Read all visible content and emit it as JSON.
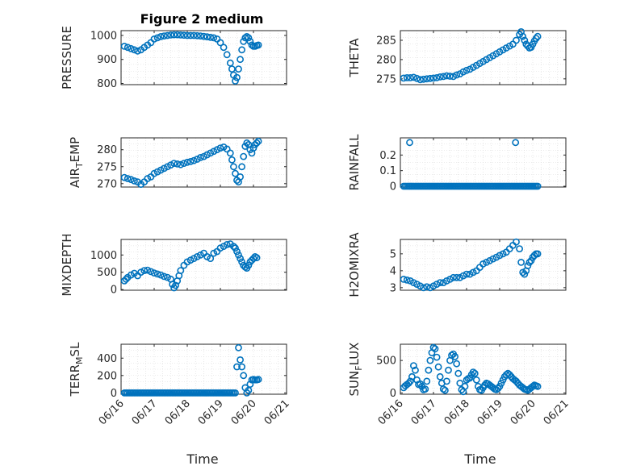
{
  "figure": {
    "title": "Figure 2 medium",
    "marker_color": "#0072BD",
    "axis_color": "#262626",
    "grid_color": "#d9d9d9"
  },
  "chart_data": [
    {
      "type": "scatter",
      "marker": "open-circle",
      "grid": true,
      "ylabel": "PRESSURE",
      "yticks": [
        800,
        900,
        1000
      ],
      "ylim": [
        795,
        1020
      ],
      "xlim": [
        0,
        5
      ],
      "xticks": [
        0,
        1,
        2,
        3,
        4,
        5
      ],
      "xticklabels": [
        "06/16",
        "06/17",
        "06/18",
        "06/19",
        "06/20",
        "06/21"
      ],
      "xticklabels_visible": false,
      "title": "Figure 2 medium",
      "x": [
        0.1,
        0.2,
        0.3,
        0.4,
        0.5,
        0.6,
        0.7,
        0.8,
        0.9,
        1.0,
        1.1,
        1.2,
        1.3,
        1.4,
        1.5,
        1.6,
        1.7,
        1.8,
        1.9,
        2.0,
        2.1,
        2.2,
        2.3,
        2.4,
        2.5,
        2.6,
        2.7,
        2.8,
        2.9,
        3.0,
        3.1,
        3.2,
        3.3,
        3.35,
        3.4,
        3.45,
        3.5,
        3.55,
        3.6,
        3.65,
        3.7,
        3.75,
        3.8,
        3.85,
        3.9,
        3.95,
        4.0,
        4.05,
        4.1,
        4.15
      ],
      "y": [
        955,
        950,
        945,
        940,
        935,
        940,
        950,
        960,
        970,
        985,
        990,
        995,
        998,
        1000,
        1002,
        1003,
        1003,
        1002,
        1001,
        1000,
        1000,
        1000,
        999,
        998,
        996,
        994,
        992,
        990,
        985,
        970,
        950,
        920,
        885,
        860,
        835,
        810,
        825,
        860,
        900,
        940,
        975,
        990,
        995,
        990,
        975,
        960,
        955,
        955,
        958,
        960
      ]
    },
    {
      "type": "scatter",
      "marker": "open-circle",
      "grid": true,
      "ylabel": "THETA",
      "yticks": [
        275,
        280,
        285
      ],
      "ylim": [
        273.5,
        287.5
      ],
      "xlim": [
        0,
        5
      ],
      "xticks": [
        0,
        1,
        2,
        3,
        4,
        5
      ],
      "xticklabels": [
        "06/16",
        "06/17",
        "06/18",
        "06/19",
        "06/20",
        "06/21"
      ],
      "xticklabels_visible": false,
      "x": [
        0.1,
        0.2,
        0.3,
        0.4,
        0.5,
        0.6,
        0.7,
        0.8,
        0.9,
        1.0,
        1.1,
        1.2,
        1.3,
        1.4,
        1.5,
        1.6,
        1.7,
        1.8,
        1.9,
        2.0,
        2.1,
        2.2,
        2.3,
        2.4,
        2.5,
        2.6,
        2.7,
        2.8,
        2.9,
        3.0,
        3.1,
        3.2,
        3.3,
        3.4,
        3.5,
        3.6,
        3.65,
        3.7,
        3.75,
        3.8,
        3.85,
        3.9,
        3.95,
        4.0,
        4.05,
        4.1,
        4.15
      ],
      "y": [
        275.2,
        275.3,
        275.3,
        275.4,
        275.1,
        274.8,
        274.9,
        275.0,
        275.1,
        275.2,
        275.3,
        275.5,
        275.6,
        275.8,
        275.7,
        275.6,
        276.0,
        276.3,
        276.8,
        277.2,
        277.5,
        278.0,
        278.5,
        279.0,
        279.5,
        280.0,
        280.5,
        281.0,
        281.5,
        282.0,
        282.5,
        283.0,
        283.5,
        284.0,
        285.0,
        286.5,
        287.2,
        286.0,
        285.0,
        284.0,
        283.5,
        283.0,
        283.2,
        284.0,
        284.8,
        285.5,
        286.0
      ]
    },
    {
      "type": "scatter",
      "marker": "open-circle",
      "grid": true,
      "ylabel": "AIR_TEMP",
      "yticks": [
        270,
        275,
        280
      ],
      "ylim": [
        269.0,
        283.5
      ],
      "xlim": [
        0,
        5
      ],
      "xticks": [
        0,
        1,
        2,
        3,
        4,
        5
      ],
      "xticklabels": [
        "06/16",
        "06/17",
        "06/18",
        "06/19",
        "06/20",
        "06/21"
      ],
      "xticklabels_visible": false,
      "x": [
        0.1,
        0.2,
        0.3,
        0.4,
        0.5,
        0.6,
        0.7,
        0.8,
        0.9,
        1.0,
        1.1,
        1.2,
        1.3,
        1.4,
        1.5,
        1.6,
        1.7,
        1.8,
        1.9,
        2.0,
        2.1,
        2.2,
        2.3,
        2.4,
        2.5,
        2.6,
        2.7,
        2.8,
        2.9,
        3.0,
        3.1,
        3.2,
        3.3,
        3.35,
        3.4,
        3.45,
        3.5,
        3.55,
        3.6,
        3.65,
        3.7,
        3.75,
        3.8,
        3.85,
        3.9,
        3.95,
        4.0,
        4.05,
        4.1,
        4.15
      ],
      "y": [
        271.8,
        271.5,
        271.2,
        270.8,
        270.5,
        269.8,
        270.5,
        271.5,
        272.0,
        273.0,
        273.5,
        274.0,
        274.5,
        275.0,
        275.5,
        276.0,
        275.8,
        275.6,
        276.0,
        276.3,
        276.5,
        276.8,
        277.2,
        277.7,
        278.0,
        278.5,
        279.0,
        279.5,
        280.0,
        280.5,
        280.8,
        280.2,
        279.0,
        277.0,
        275.0,
        273.0,
        271.0,
        270.5,
        272.0,
        275.0,
        278.0,
        281.0,
        282.0,
        281.5,
        280.0,
        279.0,
        280.5,
        281.5,
        282.0,
        282.5
      ]
    },
    {
      "type": "scatter",
      "marker": "open-circle",
      "grid": true,
      "ylabel": "RAINFALL",
      "yticks": [
        0,
        0.1,
        0.2
      ],
      "yticklabels": [
        "0",
        "0.1",
        "0.2"
      ],
      "ylim": [
        -0.005,
        0.31
      ],
      "xlim": [
        0,
        5
      ],
      "xticks": [
        0,
        1,
        2,
        3,
        4,
        5
      ],
      "xticklabels": [
        "06/16",
        "06/17",
        "06/18",
        "06/19",
        "06/20",
        "06/21"
      ],
      "xticklabels_visible": false,
      "x": [
        0.1,
        0.15,
        0.2,
        0.25,
        0.3,
        0.35,
        0.4,
        0.45,
        0.5,
        0.55,
        0.6,
        0.65,
        0.7,
        0.75,
        0.8,
        0.85,
        0.9,
        0.95,
        1.0,
        1.05,
        1.1,
        1.15,
        1.2,
        1.25,
        1.3,
        1.35,
        1.4,
        1.45,
        1.5,
        1.55,
        1.6,
        1.65,
        1.7,
        1.75,
        1.8,
        1.85,
        1.9,
        1.95,
        2.0,
        2.05,
        2.1,
        2.15,
        2.2,
        2.25,
        2.3,
        2.35,
        2.4,
        2.45,
        2.5,
        2.55,
        2.6,
        2.65,
        2.7,
        2.75,
        2.8,
        2.85,
        2.9,
        2.95,
        3.0,
        3.05,
        3.1,
        3.15,
        3.2,
        3.25,
        3.3,
        3.35,
        3.4,
        3.45,
        3.5,
        3.55,
        3.6,
        3.65,
        3.7,
        3.75,
        3.8,
        3.85,
        3.9,
        3.95,
        4.0,
        4.05,
        4.1,
        4.15,
        0.28,
        3.48
      ],
      "y": [
        0,
        0,
        0,
        0,
        0,
        0,
        0,
        0,
        0,
        0,
        0,
        0,
        0,
        0,
        0,
        0,
        0,
        0,
        0,
        0,
        0,
        0,
        0,
        0,
        0,
        0,
        0,
        0,
        0,
        0,
        0,
        0,
        0,
        0,
        0,
        0,
        0,
        0,
        0,
        0,
        0,
        0,
        0,
        0,
        0,
        0,
        0,
        0,
        0,
        0,
        0,
        0,
        0,
        0,
        0,
        0,
        0,
        0,
        0,
        0,
        0,
        0,
        0,
        0,
        0,
        0,
        0,
        0,
        0,
        0,
        0,
        0,
        0,
        0,
        0,
        0,
        0,
        0,
        0,
        0,
        0,
        0,
        0.28,
        0.28
      ]
    },
    {
      "type": "scatter",
      "marker": "open-circle",
      "grid": true,
      "ylabel": "MIXDEPTH",
      "yticks": [
        0,
        500,
        1000
      ],
      "ylim": [
        -20,
        1450
      ],
      "xlim": [
        0,
        5
      ],
      "xticks": [
        0,
        1,
        2,
        3,
        4,
        5
      ],
      "xticklabels": [
        "06/16",
        "06/17",
        "06/18",
        "06/19",
        "06/20",
        "06/21"
      ],
      "xticklabels_visible": false,
      "x": [
        0.1,
        0.15,
        0.2,
        0.3,
        0.4,
        0.5,
        0.6,
        0.7,
        0.8,
        0.9,
        1.0,
        1.1,
        1.2,
        1.3,
        1.4,
        1.5,
        1.55,
        1.6,
        1.65,
        1.7,
        1.75,
        1.8,
        1.9,
        2.0,
        2.1,
        2.2,
        2.3,
        2.4,
        2.5,
        2.6,
        2.7,
        2.8,
        2.9,
        3.0,
        3.1,
        3.2,
        3.3,
        3.4,
        3.45,
        3.5,
        3.55,
        3.6,
        3.65,
        3.7,
        3.75,
        3.8,
        3.85,
        3.9,
        3.95,
        4.0,
        4.05,
        4.1
      ],
      "y": [
        250,
        300,
        350,
        420,
        470,
        400,
        500,
        550,
        560,
        520,
        480,
        450,
        420,
        380,
        350,
        300,
        150,
        50,
        120,
        250,
        400,
        550,
        700,
        800,
        850,
        900,
        950,
        1000,
        1050,
        950,
        900,
        1050,
        1100,
        1200,
        1250,
        1300,
        1320,
        1250,
        1200,
        1100,
        1000,
        900,
        800,
        700,
        650,
        620,
        700,
        800,
        850,
        900,
        950,
        920
      ]
    },
    {
      "type": "scatter",
      "marker": "open-circle",
      "grid": true,
      "ylabel": "H2OMIXRA",
      "yticks": [
        3,
        4,
        5
      ],
      "ylim": [
        2.85,
        5.85
      ],
      "xlim": [
        0,
        5
      ],
      "xticks": [
        0,
        1,
        2,
        3,
        4,
        5
      ],
      "xticklabels": [
        "06/16",
        "06/17",
        "06/18",
        "06/19",
        "06/20",
        "06/21"
      ],
      "xticklabels_visible": false,
      "x": [
        0.1,
        0.2,
        0.3,
        0.4,
        0.5,
        0.6,
        0.7,
        0.8,
        0.9,
        1.0,
        1.1,
        1.2,
        1.3,
        1.4,
        1.5,
        1.6,
        1.7,
        1.8,
        1.9,
        2.0,
        2.1,
        2.2,
        2.3,
        2.4,
        2.5,
        2.6,
        2.7,
        2.8,
        2.9,
        3.0,
        3.1,
        3.2,
        3.3,
        3.4,
        3.5,
        3.6,
        3.65,
        3.7,
        3.75,
        3.8,
        3.85,
        3.9,
        3.95,
        4.0,
        4.05,
        4.1,
        4.15
      ],
      "y": [
        3.5,
        3.45,
        3.4,
        3.3,
        3.2,
        3.1,
        3.0,
        3.05,
        3.0,
        3.1,
        3.2,
        3.3,
        3.3,
        3.4,
        3.5,
        3.6,
        3.6,
        3.6,
        3.7,
        3.8,
        3.8,
        3.9,
        4.0,
        4.2,
        4.4,
        4.5,
        4.6,
        4.7,
        4.8,
        4.9,
        5.0,
        5.1,
        5.3,
        5.5,
        5.7,
        5.3,
        4.5,
        3.9,
        3.8,
        4.0,
        4.3,
        4.5,
        4.6,
        4.8,
        4.9,
        5.0,
        5.0
      ]
    },
    {
      "type": "scatter",
      "marker": "open-circle",
      "grid": true,
      "ylabel": "TERR_MSL",
      "yticks": [
        0,
        200,
        400
      ],
      "ylim": [
        -15,
        560
      ],
      "xlim": [
        0,
        5
      ],
      "xticks": [
        0,
        1,
        2,
        3,
        4,
        5
      ],
      "xticklabels": [
        "06/16",
        "06/17",
        "06/18",
        "06/19",
        "06/20",
        "06/21"
      ],
      "xticklabels_visible": true,
      "x": [
        0.1,
        0.15,
        0.2,
        0.25,
        0.3,
        0.35,
        0.4,
        0.45,
        0.5,
        0.55,
        0.6,
        0.65,
        0.7,
        0.75,
        0.8,
        0.85,
        0.9,
        0.95,
        1.0,
        1.05,
        1.1,
        1.15,
        1.2,
        1.25,
        1.3,
        1.35,
        1.4,
        1.45,
        1.5,
        1.55,
        1.6,
        1.65,
        1.7,
        1.75,
        1.8,
        1.85,
        1.9,
        1.95,
        2.0,
        2.05,
        2.1,
        2.15,
        2.2,
        2.25,
        2.3,
        2.35,
        2.4,
        2.45,
        2.5,
        2.55,
        2.6,
        2.65,
        2.7,
        2.75,
        2.8,
        2.85,
        2.9,
        2.95,
        3.0,
        3.05,
        3.1,
        3.15,
        3.2,
        3.25,
        3.3,
        3.35,
        3.4,
        3.45,
        3.5,
        3.55,
        3.6,
        3.65,
        3.7,
        3.75,
        3.8,
        3.85,
        3.9,
        3.95,
        4.0,
        4.05,
        4.1,
        4.15
      ],
      "y": [
        0,
        0,
        0,
        0,
        0,
        0,
        0,
        0,
        0,
        0,
        0,
        0,
        0,
        0,
        0,
        0,
        0,
        0,
        0,
        0,
        0,
        0,
        0,
        0,
        0,
        0,
        0,
        0,
        0,
        0,
        0,
        0,
        0,
        0,
        0,
        0,
        0,
        0,
        0,
        0,
        0,
        0,
        0,
        0,
        0,
        0,
        0,
        0,
        0,
        0,
        0,
        0,
        0,
        0,
        0,
        0,
        0,
        0,
        0,
        0,
        0,
        0,
        0,
        0,
        0,
        0,
        0,
        0,
        300,
        520,
        380,
        300,
        200,
        60,
        0,
        30,
        100,
        150,
        155,
        150,
        150,
        155
      ]
    },
    {
      "type": "scatter",
      "marker": "open-circle",
      "grid": true,
      "ylabel": "SUN_FLUX",
      "yticks": [
        0,
        500
      ],
      "ylim": [
        -20,
        750
      ],
      "xlim": [
        0,
        5
      ],
      "xticks": [
        0,
        1,
        2,
        3,
        4,
        5
      ],
      "xticklabels": [
        "06/16",
        "06/17",
        "06/18",
        "06/19",
        "06/20",
        "06/21"
      ],
      "xticklabels_visible": true,
      "x": [
        0.1,
        0.15,
        0.2,
        0.25,
        0.3,
        0.35,
        0.4,
        0.45,
        0.5,
        0.55,
        0.6,
        0.65,
        0.7,
        0.75,
        0.8,
        0.85,
        0.9,
        0.95,
        1.0,
        1.05,
        1.1,
        1.15,
        1.2,
        1.25,
        1.3,
        1.35,
        1.4,
        1.45,
        1.5,
        1.55,
        1.6,
        1.65,
        1.7,
        1.75,
        1.8,
        1.85,
        1.9,
        1.95,
        2.0,
        2.05,
        2.1,
        2.15,
        2.2,
        2.25,
        2.3,
        2.35,
        2.4,
        2.45,
        2.5,
        2.55,
        2.6,
        2.65,
        2.7,
        2.75,
        2.8,
        2.85,
        2.9,
        2.95,
        3.0,
        3.05,
        3.1,
        3.15,
        3.2,
        3.25,
        3.3,
        3.35,
        3.4,
        3.45,
        3.5,
        3.55,
        3.6,
        3.65,
        3.7,
        3.75,
        3.8,
        3.85,
        3.9,
        3.95,
        4.0,
        4.05,
        4.1,
        4.15
      ],
      "y": [
        80,
        110,
        130,
        150,
        180,
        250,
        420,
        350,
        200,
        130,
        140,
        100,
        50,
        60,
        180,
        350,
        500,
        620,
        700,
        680,
        550,
        400,
        250,
        150,
        60,
        40,
        180,
        350,
        500,
        580,
        600,
        560,
        450,
        300,
        150,
        50,
        20,
        100,
        200,
        220,
        230,
        280,
        320,
        300,
        200,
        100,
        50,
        40,
        80,
        120,
        150,
        140,
        120,
        100,
        80,
        60,
        50,
        70,
        100,
        150,
        200,
        250,
        280,
        300,
        280,
        250,
        220,
        200,
        180,
        150,
        120,
        100,
        80,
        60,
        50,
        40,
        60,
        80,
        100,
        120,
        110,
        100
      ]
    }
  ],
  "xlabel": "Time"
}
